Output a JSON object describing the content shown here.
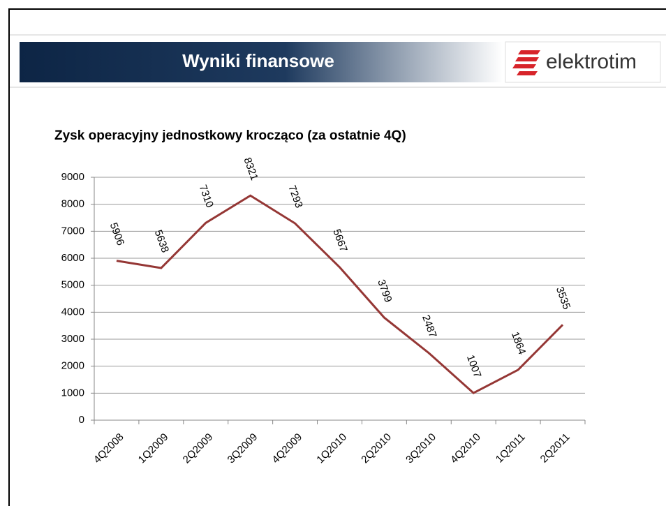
{
  "header": {
    "title": "Wyniki finansowe",
    "logo": "elektrotim"
  },
  "chart_data": {
    "type": "line",
    "title": "Zysk operacyjny jednostkowy krocząco (za ostatnie 4Q)",
    "categories": [
      "4Q2008",
      "1Q2009",
      "2Q2009",
      "3Q2009",
      "4Q2009",
      "1Q2010",
      "2Q2010",
      "3Q2010",
      "4Q2010",
      "1Q2011",
      "2Q2011"
    ],
    "series": [
      {
        "name": "Zysk operacyjny",
        "color": "#953735",
        "values": [
          5906,
          5638,
          7310,
          8321,
          7293,
          5667,
          3799,
          2487,
          1007,
          1864,
          3535
        ]
      }
    ],
    "ylim": [
      0,
      9000
    ],
    "yticks": [
      0,
      1000,
      2000,
      3000,
      4000,
      5000,
      6000,
      7000,
      8000,
      9000
    ],
    "grid": true
  }
}
